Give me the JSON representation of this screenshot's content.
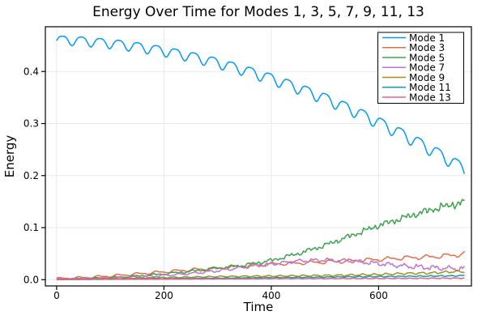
{
  "chart_data": {
    "type": "line",
    "title": "Energy Over Time for Modes 1, 3, 5, 7, 9, 11, 13",
    "xlabel": "Time",
    "ylabel": "Energy",
    "xlim": [
      -21,
      773
    ],
    "ylim": [
      -0.012,
      0.486
    ],
    "xticks": [
      0,
      200,
      400,
      600
    ],
    "xticklabels": [
      "0",
      "200",
      "400",
      "600"
    ],
    "yticks": [
      0.0,
      0.1,
      0.2,
      0.3,
      0.4
    ],
    "yticklabels": [
      "0.0",
      "0.1",
      "0.2",
      "0.3",
      "0.4"
    ],
    "grid": true,
    "grid_color": "#e9e9e9",
    "axis_color": "#000000",
    "background": "#ffffff",
    "legend_position": "top-right",
    "t_samples": [
      0,
      50,
      100,
      150,
      200,
      250,
      300,
      350,
      400,
      450,
      500,
      550,
      600,
      650,
      700,
      750,
      760
    ],
    "t_end": 760,
    "series": [
      {
        "name": "Mode 1",
        "color": "#009AFA",
        "trend": [
          0.4615,
          0.459,
          0.4546,
          0.4482,
          0.4399,
          0.4296,
          0.4174,
          0.4032,
          0.3871,
          0.369,
          0.349,
          0.327,
          0.3031,
          0.2772,
          0.2494,
          0.2196,
          0.2134
        ],
        "osc": {
          "period": 35,
          "phase": -2.0,
          "amp0": 0.0095,
          "amp1": 0.013,
          "shape": "scallop"
        },
        "noise0": 0,
        "noise1": 0,
        "noise_pow": 1,
        "seed": 0.5
      },
      {
        "name": "Mode 3",
        "color": "#E36F47",
        "trend": [
          0.002,
          0.004,
          0.007,
          0.011,
          0.015,
          0.019,
          0.022,
          0.026,
          0.03,
          0.032,
          0.034,
          0.036,
          0.039,
          0.042,
          0.044,
          0.048,
          0.05
        ],
        "osc": {
          "period": 36,
          "phase": 0.3,
          "amp0": 0.0022,
          "amp1": 0.0042,
          "shape": "saw"
        },
        "noise0": 0.0001,
        "noise1": 0.0012,
        "noise_pow": 1.3,
        "seed": 1.7
      },
      {
        "name": "Mode 5",
        "color": "#3DA44E",
        "trend": [
          0.001,
          0.002,
          0.004,
          0.007,
          0.011,
          0.016,
          0.022,
          0.028,
          0.037,
          0.05,
          0.066,
          0.085,
          0.104,
          0.12,
          0.135,
          0.147,
          0.148
        ],
        "osc": {
          "period": 36,
          "phase": 1.1,
          "amp0": 0.001,
          "amp1": 0.004,
          "shape": "saw"
        },
        "noise0": 0.0003,
        "noise1": 0.0075,
        "noise_pow": 1.7,
        "seed": 4.2
      },
      {
        "name": "Mode 7",
        "color": "#C271D2",
        "trend": [
          0.001,
          0.002,
          0.003,
          0.005,
          0.008,
          0.012,
          0.017,
          0.024,
          0.03,
          0.036,
          0.038,
          0.036,
          0.031,
          0.026,
          0.023,
          0.021,
          0.022
        ],
        "osc": {
          "period": 28,
          "phase": 0.8,
          "amp0": 0.0008,
          "amp1": 0.003,
          "shape": "square"
        },
        "noise0": 0.0002,
        "noise1": 0.0035,
        "noise_pow": 1.4,
        "seed": 7.9
      },
      {
        "name": "Mode 9",
        "color": "#AC8E17",
        "trend": [
          0.0005,
          0.001,
          0.002,
          0.003,
          0.004,
          0.005,
          0.006,
          0.0065,
          0.007,
          0.0075,
          0.008,
          0.009,
          0.01,
          0.012,
          0.013,
          0.016,
          0.015
        ],
        "osc": {
          "period": 22,
          "phase": 0.5,
          "amp0": 0.0004,
          "amp1": 0.0018,
          "shape": "cos"
        },
        "noise0": 0.0001,
        "noise1": 0.0012,
        "noise_pow": 1.5,
        "seed": 11.3
      },
      {
        "name": "Mode 11",
        "color": "#00AAAE",
        "trend": [
          0.0003,
          0.0006,
          0.001,
          0.0015,
          0.002,
          0.0025,
          0.003,
          0.0035,
          0.004,
          0.0045,
          0.005,
          0.0055,
          0.006,
          0.0065,
          0.007,
          0.0075,
          0.008
        ],
        "osc": {
          "period": 19,
          "phase": 2.1,
          "amp0": 0.0002,
          "amp1": 0.0009,
          "shape": "cos"
        },
        "noise0": 0.0001,
        "noise1": 0.0008,
        "noise_pow": 1.2,
        "seed": 3.3
      },
      {
        "name": "Mode 13",
        "color": "#ED5E93",
        "trend": [
          0.0002,
          0.0004,
          0.0006,
          0.0008,
          0.001,
          0.0012,
          0.0014,
          0.0016,
          0.002,
          0.0021,
          0.0022,
          0.0023,
          0.0025,
          0.0026,
          0.0028,
          0.0029,
          0.003
        ],
        "osc": {
          "period": 21,
          "phase": 4.0,
          "amp0": 0.0001,
          "amp1": 0.0005,
          "shape": "cos"
        },
        "noise0": 5e-05,
        "noise1": 0.0005,
        "noise_pow": 1.0,
        "seed": 9.1
      }
    ]
  }
}
